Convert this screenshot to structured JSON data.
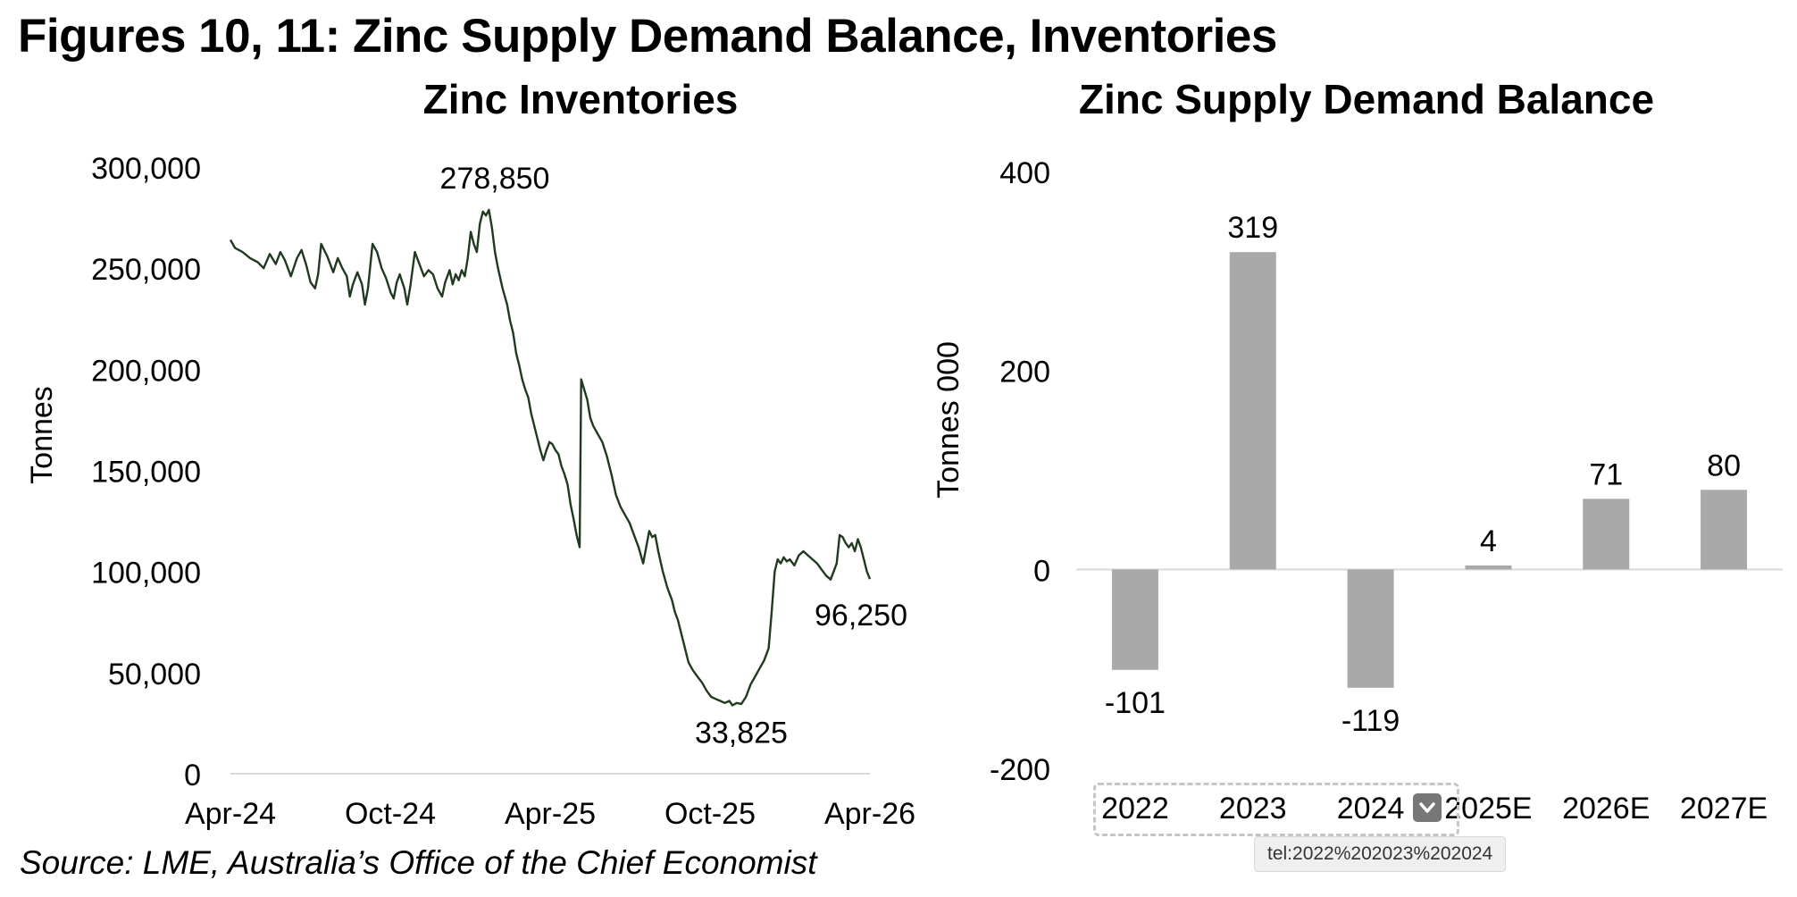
{
  "figure_title": "Figures 10, 11: Zinc Supply Demand Balance, Inventories",
  "source": "Source: LME, Australia’s Office of the Chief Economist",
  "smart_tag": {
    "phone_text": "tel:2022%202023%202024"
  },
  "colors": {
    "line": "#1f3a1f",
    "bar": "#a9a9a9",
    "axis": "#d9d9d9"
  },
  "icons": {
    "dropdown": "chevron-down-icon"
  },
  "chart_data": [
    {
      "type": "line",
      "title": "Zinc Inventories",
      "ylabel": "Tonnes",
      "xlabel": "",
      "ylim": [
        0,
        300000
      ],
      "yticks": [
        "0",
        "50,000",
        "100,000",
        "150,000",
        "200,000",
        "250,000",
        "300,000"
      ],
      "xticks": [
        "Apr-24",
        "Oct-24",
        "Apr-25",
        "Oct-25",
        "Apr-26"
      ],
      "annotations": [
        {
          "label": "278,850",
          "value": 278850
        },
        {
          "label": "33,825",
          "value": 33825
        },
        {
          "label": "96,250",
          "value": 96250
        }
      ],
      "series": [
        {
          "values": [
            [
              0,
              264000
            ],
            [
              3,
              260000
            ],
            [
              8,
              258000
            ],
            [
              13,
              255000
            ],
            [
              18,
              253000
            ],
            [
              22,
              250000
            ],
            [
              26,
              257000
            ],
            [
              30,
              252000
            ],
            [
              33,
              258000
            ],
            [
              36,
              254000
            ],
            [
              40,
              246000
            ],
            [
              44,
              255000
            ],
            [
              47,
              259000
            ],
            [
              50,
              252000
            ],
            [
              53,
              243000
            ],
            [
              56,
              240000
            ],
            [
              58,
              247000
            ],
            [
              60,
              262000
            ],
            [
              64,
              256000
            ],
            [
              68,
              248000
            ],
            [
              71,
              255000
            ],
            [
              74,
              250000
            ],
            [
              77,
              246000
            ],
            [
              79,
              236000
            ],
            [
              81,
              242000
            ],
            [
              84,
              248000
            ],
            [
              87,
              242000
            ],
            [
              89,
              232000
            ],
            [
              91,
              240000
            ],
            [
              94,
              262000
            ],
            [
              97,
              258000
            ],
            [
              100,
              250000
            ],
            [
              103,
              245000
            ],
            [
              106,
              238000
            ],
            [
              108,
              235000
            ],
            [
              110,
              243000
            ],
            [
              112,
              247000
            ],
            [
              115,
              240000
            ],
            [
              117,
              232000
            ],
            [
              119,
              241000
            ],
            [
              122,
              258000
            ],
            [
              125,
              252000
            ],
            [
              128,
              246000
            ],
            [
              131,
              249000
            ],
            [
              134,
              247000
            ],
            [
              137,
              240000
            ],
            [
              140,
              236000
            ],
            [
              142,
              243000
            ],
            [
              145,
              249000
            ],
            [
              147,
              242000
            ],
            [
              149,
              247000
            ],
            [
              151,
              244000
            ],
            [
              153,
              249000
            ],
            [
              155,
              246000
            ],
            [
              157,
              255000
            ],
            [
              159,
              268000
            ],
            [
              161,
              262000
            ],
            [
              163,
              258000
            ],
            [
              165,
              272000
            ],
            [
              167,
              278000
            ],
            [
              169,
              276000
            ],
            [
              171,
              278850
            ],
            [
              173,
              270000
            ],
            [
              175,
              258000
            ],
            [
              177,
              250000
            ],
            [
              180,
              240000
            ],
            [
              183,
              232000
            ],
            [
              185,
              224000
            ],
            [
              187,
              218000
            ],
            [
              189,
              208000
            ],
            [
              191,
              202000
            ],
            [
              193,
              195000
            ],
            [
              195,
              190000
            ],
            [
              197,
              186000
            ],
            [
              199,
              178000
            ],
            [
              201,
              172000
            ],
            [
              203,
              166000
            ],
            [
              205,
              160000
            ],
            [
              207,
              155000
            ],
            [
              209,
              160000
            ],
            [
              211,
              164000
            ],
            [
              213,
              163000
            ],
            [
              215,
              160000
            ],
            [
              217,
              158000
            ],
            [
              219,
              152000
            ],
            [
              221,
              148000
            ],
            [
              223,
              143000
            ],
            [
              225,
              133000
            ],
            [
              227,
              126000
            ],
            [
              229,
              118000
            ],
            [
              231,
              112000
            ],
            [
              232,
              195000
            ],
            [
              234,
              190000
            ],
            [
              236,
              185000
            ],
            [
              238,
              176000
            ],
            [
              240,
              172000
            ],
            [
              243,
              168000
            ],
            [
              246,
              164000
            ],
            [
              249,
              157000
            ],
            [
              252,
              148000
            ],
            [
              255,
              138000
            ],
            [
              258,
              132000
            ],
            [
              261,
              128000
            ],
            [
              264,
              124000
            ],
            [
              267,
              118000
            ],
            [
              270,
              112000
            ],
            [
              273,
              104000
            ],
            [
              275,
              112000
            ],
            [
              277,
              120000
            ],
            [
              279,
              117000
            ],
            [
              281,
              118000
            ],
            [
              283,
              110000
            ],
            [
              286,
              100000
            ],
            [
              289,
              92000
            ],
            [
              292,
              86000
            ],
            [
              294,
              80000
            ],
            [
              296,
              76000
            ],
            [
              298,
              70000
            ],
            [
              300,
              64000
            ],
            [
              303,
              55000
            ],
            [
              306,
              51000
            ],
            [
              309,
              48000
            ],
            [
              312,
              45000
            ],
            [
              315,
              41000
            ],
            [
              318,
              38000
            ],
            [
              321,
              37000
            ],
            [
              324,
              36000
            ],
            [
              327,
              35000
            ],
            [
              330,
              36000
            ],
            [
              332,
              33825
            ],
            [
              335,
              35000
            ],
            [
              338,
              34500
            ],
            [
              341,
              38000
            ],
            [
              344,
              44000
            ],
            [
              347,
              48000
            ],
            [
              350,
              52000
            ],
            [
              353,
              56000
            ],
            [
              356,
              62000
            ],
            [
              358,
              80000
            ],
            [
              360,
              100000
            ],
            [
              362,
              106000
            ],
            [
              364,
              104000
            ],
            [
              366,
              107000
            ],
            [
              368,
              105000
            ],
            [
              370,
              106000
            ],
            [
              373,
              103000
            ],
            [
              376,
              108000
            ],
            [
              379,
              110000
            ],
            [
              382,
              108000
            ],
            [
              385,
              106000
            ],
            [
              388,
              104000
            ],
            [
              391,
              101000
            ],
            [
              394,
              98000
            ],
            [
              397,
              96000
            ],
            [
              399,
              100000
            ],
            [
              401,
              104000
            ],
            [
              403,
              118000
            ],
            [
              405,
              117000
            ],
            [
              407,
              114000
            ],
            [
              409,
              112000
            ],
            [
              411,
              114000
            ],
            [
              413,
              110000
            ],
            [
              415,
              116000
            ],
            [
              417,
              112000
            ],
            [
              419,
              106000
            ],
            [
              421,
              100000
            ],
            [
              423,
              96250
            ]
          ]
        }
      ]
    },
    {
      "type": "bar",
      "title": "Zinc Supply Demand Balance",
      "ylabel": "Tonnes 000",
      "xlabel": "",
      "ylim": [
        -200,
        400
      ],
      "yticks": [
        "-200",
        "0",
        "200",
        "400"
      ],
      "categories": [
        "2022",
        "2023",
        "2024",
        "2025E",
        "2026E",
        "2027E"
      ],
      "values": [
        -101,
        319,
        -119,
        4,
        71,
        80
      ],
      "value_labels": [
        "-101",
        "319",
        "-119",
        "4",
        "71",
        "80"
      ]
    }
  ]
}
